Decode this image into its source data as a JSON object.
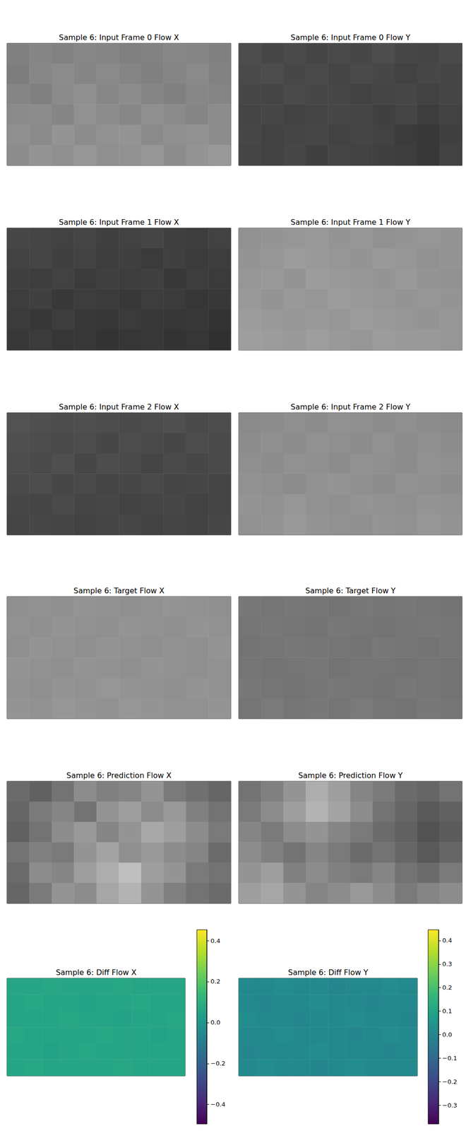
{
  "chart_data": [
    {
      "type": "heatmap",
      "title": "Sample 6: Input Frame 0 Flow X",
      "color": "gray",
      "tick_labels": false,
      "vlim": [
        0,
        1
      ],
      "cells": [
        [
          0.5,
          0.52,
          0.51,
          0.53,
          0.52,
          0.5,
          0.51,
          0.53,
          0.52,
          0.5
        ],
        [
          0.49,
          0.53,
          0.55,
          0.52,
          0.54,
          0.52,
          0.5,
          0.52,
          0.54,
          0.51
        ],
        [
          0.52,
          0.5,
          0.54,
          0.56,
          0.53,
          0.55,
          0.52,
          0.5,
          0.53,
          0.52
        ],
        [
          0.54,
          0.55,
          0.52,
          0.57,
          0.55,
          0.53,
          0.56,
          0.54,
          0.52,
          0.55
        ],
        [
          0.56,
          0.54,
          0.58,
          0.55,
          0.57,
          0.58,
          0.54,
          0.56,
          0.57,
          0.55
        ],
        [
          0.55,
          0.58,
          0.56,
          0.59,
          0.56,
          0.57,
          0.59,
          0.55,
          0.58,
          0.6
        ]
      ]
    },
    {
      "type": "heatmap",
      "title": "Sample 6: Input Frame 0 Flow Y",
      "color": "gray",
      "tick_labels": false,
      "vlim": [
        0,
        1
      ],
      "cells": [
        [
          0.3,
          0.28,
          0.29,
          0.27,
          0.29,
          0.28,
          0.3,
          0.28,
          0.27,
          0.29
        ],
        [
          0.29,
          0.3,
          0.28,
          0.29,
          0.27,
          0.29,
          0.28,
          0.26,
          0.28,
          0.27
        ],
        [
          0.28,
          0.27,
          0.29,
          0.28,
          0.28,
          0.26,
          0.27,
          0.28,
          0.26,
          0.27
        ],
        [
          0.27,
          0.28,
          0.26,
          0.27,
          0.28,
          0.27,
          0.25,
          0.27,
          0.24,
          0.26
        ],
        [
          0.28,
          0.26,
          0.27,
          0.28,
          0.26,
          0.27,
          0.26,
          0.23,
          0.22,
          0.25
        ],
        [
          0.27,
          0.26,
          0.28,
          0.25,
          0.27,
          0.26,
          0.25,
          0.24,
          0.22,
          0.26
        ]
      ]
    },
    {
      "type": "heatmap",
      "title": "Sample 6: Input Frame 1 Flow X",
      "color": "gray",
      "tick_labels": false,
      "vlim": [
        0,
        1
      ],
      "cells": [
        [
          0.28,
          0.27,
          0.26,
          0.27,
          0.25,
          0.26,
          0.27,
          0.25,
          0.24,
          0.26
        ],
        [
          0.26,
          0.27,
          0.25,
          0.26,
          0.24,
          0.25,
          0.23,
          0.25,
          0.23,
          0.24
        ],
        [
          0.25,
          0.24,
          0.26,
          0.23,
          0.25,
          0.24,
          0.25,
          0.22,
          0.24,
          0.23
        ],
        [
          0.24,
          0.25,
          0.22,
          0.24,
          0.23,
          0.22,
          0.24,
          0.23,
          0.21,
          0.22
        ],
        [
          0.23,
          0.21,
          0.24,
          0.22,
          0.21,
          0.23,
          0.22,
          0.21,
          0.22,
          0.2
        ],
        [
          0.22,
          0.23,
          0.21,
          0.22,
          0.2,
          0.21,
          0.22,
          0.2,
          0.21,
          0.19
        ]
      ]
    },
    {
      "type": "heatmap",
      "title": "Sample 6: Input Frame 1 Flow Y",
      "color": "gray",
      "tick_labels": false,
      "vlim": [
        0,
        1
      ],
      "cells": [
        [
          0.57,
          0.58,
          0.59,
          0.6,
          0.58,
          0.59,
          0.57,
          0.58,
          0.59,
          0.58
        ],
        [
          0.58,
          0.59,
          0.61,
          0.6,
          0.59,
          0.58,
          0.6,
          0.59,
          0.57,
          0.58
        ],
        [
          0.59,
          0.6,
          0.58,
          0.61,
          0.6,
          0.59,
          0.58,
          0.6,
          0.58,
          0.57
        ],
        [
          0.6,
          0.58,
          0.6,
          0.59,
          0.61,
          0.6,
          0.59,
          0.58,
          0.59,
          0.58
        ],
        [
          0.61,
          0.6,
          0.59,
          0.6,
          0.59,
          0.61,
          0.6,
          0.59,
          0.58,
          0.59
        ],
        [
          0.62,
          0.61,
          0.6,
          0.62,
          0.6,
          0.59,
          0.61,
          0.6,
          0.6,
          0.59
        ]
      ]
    },
    {
      "type": "heatmap",
      "title": "Sample 6: Input Frame 2 Flow X",
      "color": "gray",
      "tick_labels": false,
      "vlim": [
        0,
        1
      ],
      "cells": [
        [
          0.32,
          0.31,
          0.3,
          0.31,
          0.3,
          0.29,
          0.3,
          0.31,
          0.29,
          0.3
        ],
        [
          0.31,
          0.3,
          0.29,
          0.3,
          0.28,
          0.3,
          0.29,
          0.28,
          0.3,
          0.29
        ],
        [
          0.3,
          0.29,
          0.31,
          0.28,
          0.3,
          0.29,
          0.27,
          0.29,
          0.28,
          0.29
        ],
        [
          0.29,
          0.3,
          0.28,
          0.29,
          0.27,
          0.28,
          0.29,
          0.27,
          0.28,
          0.27
        ],
        [
          0.28,
          0.27,
          0.29,
          0.27,
          0.28,
          0.26,
          0.27,
          0.28,
          0.26,
          0.27
        ],
        [
          0.27,
          0.28,
          0.27,
          0.26,
          0.27,
          0.28,
          0.26,
          0.27,
          0.26,
          0.28
        ]
      ]
    },
    {
      "type": "heatmap",
      "title": "Sample 6: Input Frame 2 Flow Y",
      "color": "gray",
      "tick_labels": false,
      "vlim": [
        0,
        1
      ],
      "cells": [
        [
          0.54,
          0.55,
          0.56,
          0.55,
          0.57,
          0.56,
          0.55,
          0.56,
          0.55,
          0.54
        ],
        [
          0.55,
          0.56,
          0.55,
          0.57,
          0.56,
          0.55,
          0.57,
          0.55,
          0.56,
          0.55
        ],
        [
          0.56,
          0.55,
          0.57,
          0.56,
          0.55,
          0.57,
          0.56,
          0.55,
          0.57,
          0.56
        ],
        [
          0.57,
          0.56,
          0.55,
          0.57,
          0.58,
          0.56,
          0.55,
          0.57,
          0.56,
          0.55
        ],
        [
          0.58,
          0.57,
          0.59,
          0.57,
          0.56,
          0.58,
          0.57,
          0.56,
          0.58,
          0.57
        ],
        [
          0.57,
          0.58,
          0.6,
          0.58,
          0.57,
          0.56,
          0.58,
          0.57,
          0.59,
          0.58
        ]
      ]
    },
    {
      "type": "heatmap",
      "title": "Sample 6: Target Flow X",
      "color": "gray",
      "tick_labels": false,
      "vlim": [
        0,
        1
      ],
      "cells": [
        [
          0.56,
          0.57,
          0.56,
          0.58,
          0.57,
          0.56,
          0.57,
          0.58,
          0.57,
          0.56
        ],
        [
          0.57,
          0.56,
          0.58,
          0.57,
          0.56,
          0.58,
          0.57,
          0.56,
          0.58,
          0.57
        ],
        [
          0.56,
          0.58,
          0.57,
          0.56,
          0.58,
          0.57,
          0.56,
          0.57,
          0.56,
          0.58
        ],
        [
          0.58,
          0.57,
          0.56,
          0.58,
          0.57,
          0.56,
          0.58,
          0.57,
          0.56,
          0.57
        ],
        [
          0.57,
          0.56,
          0.58,
          0.57,
          0.59,
          0.58,
          0.57,
          0.56,
          0.58,
          0.57
        ],
        [
          0.58,
          0.57,
          0.59,
          0.58,
          0.57,
          0.59,
          0.58,
          0.57,
          0.57,
          0.58
        ]
      ]
    },
    {
      "type": "heatmap",
      "title": "Sample 6: Target Flow Y",
      "color": "gray",
      "tick_labels": false,
      "vlim": [
        0,
        1
      ],
      "cells": [
        [
          0.47,
          0.46,
          0.47,
          0.46,
          0.45,
          0.47,
          0.46,
          0.47,
          0.46,
          0.45
        ],
        [
          0.46,
          0.47,
          0.46,
          0.45,
          0.47,
          0.46,
          0.45,
          0.46,
          0.47,
          0.46
        ],
        [
          0.45,
          0.46,
          0.47,
          0.46,
          0.46,
          0.45,
          0.47,
          0.46,
          0.45,
          0.46
        ],
        [
          0.46,
          0.45,
          0.46,
          0.47,
          0.45,
          0.46,
          0.46,
          0.45,
          0.46,
          0.45
        ],
        [
          0.47,
          0.46,
          0.45,
          0.46,
          0.47,
          0.46,
          0.45,
          0.47,
          0.46,
          0.45
        ],
        [
          0.46,
          0.48,
          0.46,
          0.47,
          0.46,
          0.48,
          0.46,
          0.45,
          0.47,
          0.46
        ]
      ]
    },
    {
      "type": "heatmap",
      "title": "Sample 6: Prediction Flow X",
      "color": "gray",
      "tick_labels": false,
      "vlim": [
        0,
        1
      ],
      "cells": [
        [
          0.42,
          0.38,
          0.45,
          0.55,
          0.5,
          0.52,
          0.58,
          0.48,
          0.44,
          0.4
        ],
        [
          0.4,
          0.48,
          0.52,
          0.45,
          0.58,
          0.62,
          0.55,
          0.6,
          0.5,
          0.45
        ],
        [
          0.38,
          0.45,
          0.55,
          0.6,
          0.52,
          0.58,
          0.66,
          0.62,
          0.55,
          0.48
        ],
        [
          0.45,
          0.5,
          0.48,
          0.58,
          0.64,
          0.56,
          0.6,
          0.55,
          0.52,
          0.42
        ],
        [
          0.42,
          0.55,
          0.52,
          0.62,
          0.68,
          0.75,
          0.62,
          0.58,
          0.48,
          0.45
        ],
        [
          0.4,
          0.48,
          0.58,
          0.55,
          0.65,
          0.7,
          0.58,
          0.5,
          0.45,
          0.42
        ]
      ]
    },
    {
      "type": "heatmap",
      "title": "Sample 6: Prediction Flow Y",
      "color": "gray",
      "tick_labels": false,
      "vlim": [
        0,
        1
      ],
      "cells": [
        [
          0.45,
          0.5,
          0.58,
          0.68,
          0.62,
          0.52,
          0.48,
          0.42,
          0.4,
          0.45
        ],
        [
          0.48,
          0.55,
          0.62,
          0.7,
          0.64,
          0.55,
          0.45,
          0.4,
          0.35,
          0.38
        ],
        [
          0.52,
          0.48,
          0.55,
          0.58,
          0.52,
          0.48,
          0.42,
          0.38,
          0.32,
          0.36
        ],
        [
          0.55,
          0.5,
          0.45,
          0.52,
          0.48,
          0.42,
          0.45,
          0.4,
          0.35,
          0.4
        ],
        [
          0.58,
          0.62,
          0.5,
          0.55,
          0.5,
          0.48,
          0.52,
          0.45,
          0.42,
          0.48
        ],
        [
          0.62,
          0.65,
          0.58,
          0.52,
          0.55,
          0.6,
          0.55,
          0.48,
          0.52,
          0.55
        ]
      ]
    },
    {
      "type": "heatmap",
      "title": "Sample 6: Diff Flow X",
      "color": "viridis",
      "tick_labels": false,
      "colorbar": {
        "range": [
          -0.495,
          0.453
        ],
        "ticks": [
          {
            "value": -0.4,
            "label": "−0.4"
          },
          {
            "value": -0.2,
            "label": "−0.2"
          },
          {
            "value": 0,
            "label": "0.0"
          },
          0.2,
          0.4
        ]
      },
      "cells": [
        [
          0.06,
          0.06,
          0.07,
          0.06,
          0.06,
          0.06,
          0.07,
          0.06,
          0.06,
          0.06
        ],
        [
          0.06,
          0.07,
          0.06,
          0.06,
          0.05,
          0.06,
          0.06,
          0.07,
          0.06,
          0.06
        ],
        [
          0.06,
          0.06,
          0.06,
          0.07,
          0.06,
          0.06,
          0.05,
          0.06,
          0.06,
          0.07
        ],
        [
          0.07,
          0.06,
          0.06,
          0.06,
          0.06,
          0.07,
          0.06,
          0.06,
          0.05,
          0.06
        ],
        [
          0.06,
          0.06,
          0.05,
          0.06,
          0.07,
          0.06,
          0.06,
          0.06,
          0.06,
          0.06
        ],
        [
          0.06,
          0.07,
          0.06,
          0.06,
          0.06,
          0.06,
          0.07,
          0.06,
          0.06,
          0.06
        ]
      ]
    },
    {
      "type": "heatmap",
      "title": "Sample 6: Diff Flow Y",
      "color": "viridis",
      "tick_labels": false,
      "colorbar": {
        "range": [
          -0.38,
          0.446
        ],
        "ticks": [
          {
            "value": -0.3,
            "label": "−0.3"
          },
          {
            "value": -0.2,
            "label": "−0.2"
          },
          {
            "value": -0.1,
            "label": "−0.1"
          },
          {
            "value": 0,
            "label": "0.0"
          },
          0.1,
          0.2,
          0.3,
          0.4
        ]
      },
      "cells": [
        [
          0.01,
          0.01,
          0.02,
          0.01,
          0.01,
          0.0,
          0.01,
          0.01,
          0.02,
          0.01
        ],
        [
          0.01,
          0.0,
          0.01,
          0.01,
          0.02,
          0.01,
          0.01,
          0.0,
          0.01,
          0.01
        ],
        [
          0.02,
          0.01,
          0.01,
          0.0,
          0.01,
          0.01,
          0.02,
          0.01,
          0.01,
          0.0
        ],
        [
          0.01,
          0.01,
          0.02,
          0.01,
          0.01,
          0.01,
          0.0,
          0.01,
          0.02,
          0.01
        ],
        [
          0.0,
          0.01,
          0.01,
          0.01,
          0.02,
          0.01,
          0.01,
          0.01,
          0.0,
          0.01
        ],
        [
          0.01,
          0.02,
          0.01,
          0.01,
          0.0,
          0.01,
          0.02,
          0.01,
          0.01,
          0.01
        ]
      ]
    }
  ]
}
